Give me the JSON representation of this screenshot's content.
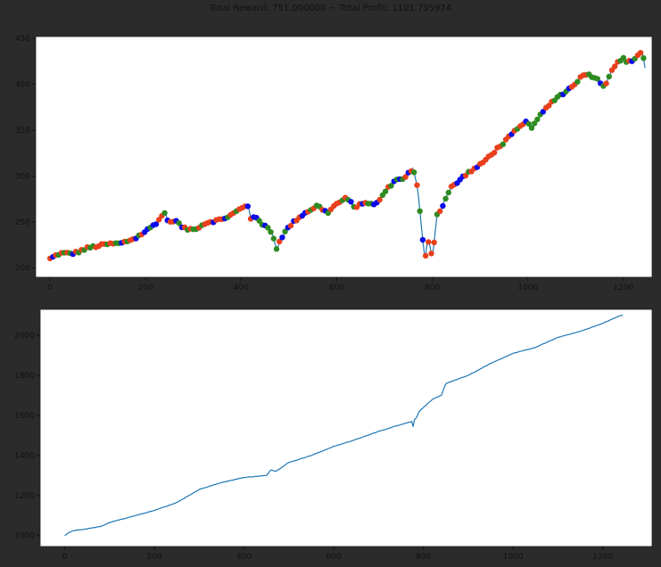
{
  "figure": {
    "title": "Total Reward: 751.000000 ~ Total Profit: 1101.795974"
  },
  "chart_data": [
    {
      "type": "line",
      "title": "",
      "xlabel": "",
      "ylabel": "",
      "xlim": [
        -30,
        1260
      ],
      "ylim": [
        190,
        452
      ],
      "xticks": [
        0,
        200,
        400,
        600,
        800,
        1000,
        1200
      ],
      "yticks": [
        200,
        250,
        300,
        350,
        400,
        450
      ],
      "grid": false,
      "legend": "none",
      "line_color": "#1f77b4",
      "marker_colors": {
        "red": "#e8401c",
        "green": "#2e8b22",
        "blue": "#0a0aea"
      },
      "series": [
        {
          "x": [
            0,
            20,
            50,
            80,
            100,
            120,
            150,
            180,
            200,
            220,
            240,
            250,
            260,
            280,
            300,
            330,
            360,
            380,
            400,
            415,
            420,
            430,
            440,
            460,
            470,
            475,
            480,
            500,
            520,
            540,
            560,
            580,
            600,
            620,
            640,
            660,
            680,
            700,
            720,
            740,
            760,
            770,
            775,
            780,
            785,
            790,
            795,
            800,
            810,
            820,
            830,
            840,
            850,
            870,
            900,
            920,
            940,
            960,
            980,
            1000,
            1010,
            1020,
            1040,
            1060,
            1080,
            1100,
            1120,
            1140,
            1160,
            1180,
            1200,
            1210,
            1220,
            1230,
            1240,
            1247
          ],
          "y": [
            210,
            216,
            216,
            222,
            224,
            226,
            227,
            233,
            240,
            248,
            260,
            248,
            253,
            243,
            242,
            250,
            253,
            258,
            265,
            268,
            254,
            258,
            248,
            243,
            230,
            218,
            230,
            245,
            255,
            262,
            268,
            260,
            270,
            276,
            266,
            272,
            268,
            282,
            295,
            298,
            308,
            285,
            255,
            230,
            210,
            232,
            225,
            210,
            258,
            266,
            278,
            288,
            292,
            302,
            312,
            322,
            332,
            342,
            352,
            360,
            352,
            362,
            375,
            386,
            392,
            402,
            412,
            408,
            398,
            420,
            428,
            424,
            426,
            432,
            436,
            410
          ],
          "signal_rule": "rising: red, falling: green, flat: blue"
        }
      ]
    },
    {
      "type": "line",
      "title": "",
      "xlabel": "",
      "ylabel": "",
      "xlim": [
        -55,
        1310
      ],
      "ylim": [
        945,
        2130
      ],
      "xticks": [
        0,
        200,
        400,
        600,
        800,
        1000,
        1200
      ],
      "yticks": [
        1000,
        1200,
        1400,
        1600,
        1800,
        2000
      ],
      "grid": false,
      "legend": "none",
      "line_color": "#1f77b4",
      "series": [
        {
          "x": [
            0,
            10,
            20,
            40,
            80,
            100,
            150,
            200,
            250,
            300,
            350,
            400,
            450,
            460,
            470,
            500,
            550,
            600,
            650,
            700,
            750,
            775,
            778,
            780,
            785,
            790,
            800,
            820,
            840,
            850,
            900,
            950,
            1000,
            1050,
            1100,
            1150,
            1200,
            1240,
            1245
          ],
          "y": [
            1000,
            1015,
            1025,
            1030,
            1045,
            1065,
            1095,
            1125,
            1165,
            1230,
            1265,
            1290,
            1300,
            1330,
            1320,
            1365,
            1400,
            1445,
            1480,
            1520,
            1555,
            1570,
            1530,
            1580,
            1590,
            1620,
            1640,
            1680,
            1700,
            1760,
            1800,
            1860,
            1910,
            1940,
            1990,
            2020,
            2060,
            2100,
            2100
          ]
        }
      ]
    }
  ]
}
